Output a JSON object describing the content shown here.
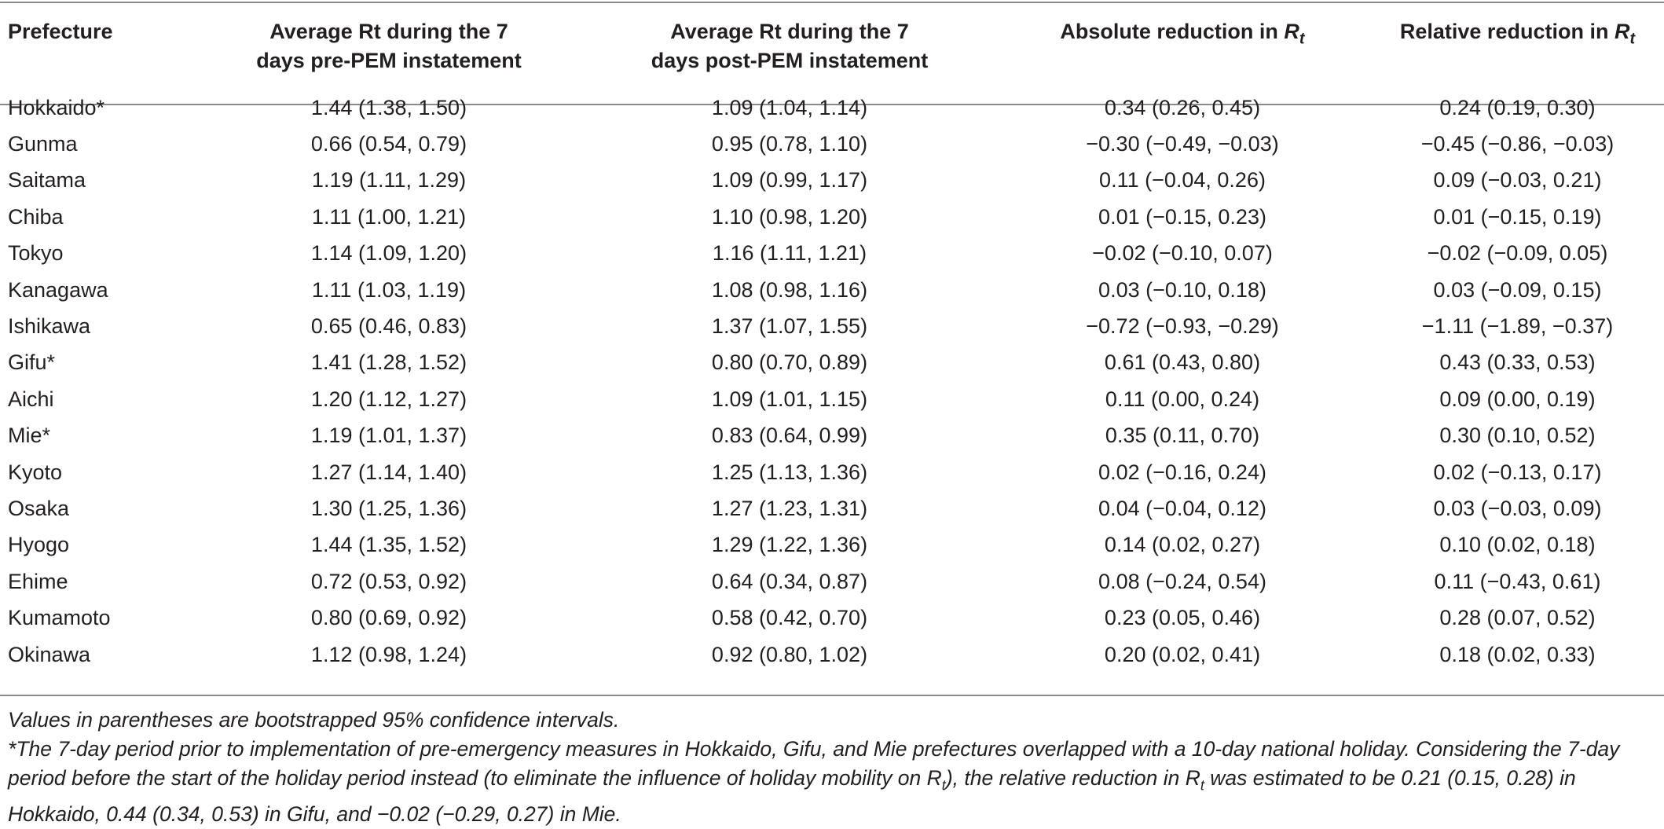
{
  "table": {
    "headers": {
      "prefecture": "Prefecture",
      "pre_line1": "Average Rt during the 7",
      "pre_line2": "days pre-PEM instatement",
      "post_line1": "Average Rt during the 7",
      "post_line2": "days post-PEM instatement",
      "abs_text": "Absolute reduction in ",
      "rel_text": "Relative reduction in ",
      "r_symbol": "R",
      "r_subscript": "t"
    },
    "rows": [
      {
        "prefecture": "Hokkaido*",
        "pre": "1.44 (1.38, 1.50)",
        "post": "1.09 (1.04, 1.14)",
        "abs": "0.34 (0.26, 0.45)",
        "rel": "0.24 (0.19, 0.30)"
      },
      {
        "prefecture": "Gunma",
        "pre": "0.66 (0.54, 0.79)",
        "post": "0.95 (0.78, 1.10)",
        "abs": "−0.30 (−0.49, −0.03)",
        "rel": "−0.45 (−0.86, −0.03)"
      },
      {
        "prefecture": "Saitama",
        "pre": "1.19 (1.11, 1.29)",
        "post": "1.09 (0.99, 1.17)",
        "abs": "0.11 (−0.04, 0.26)",
        "rel": "0.09 (−0.03, 0.21)"
      },
      {
        "prefecture": "Chiba",
        "pre": "1.11 (1.00, 1.21)",
        "post": "1.10 (0.98, 1.20)",
        "abs": "0.01 (−0.15, 0.23)",
        "rel": "0.01 (−0.15, 0.19)"
      },
      {
        "prefecture": "Tokyo",
        "pre": "1.14 (1.09, 1.20)",
        "post": "1.16 (1.11, 1.21)",
        "abs": "−0.02 (−0.10, 0.07)",
        "rel": "−0.02 (−0.09, 0.05)"
      },
      {
        "prefecture": "Kanagawa",
        "pre": "1.11 (1.03, 1.19)",
        "post": "1.08 (0.98, 1.16)",
        "abs": "0.03 (−0.10, 0.18)",
        "rel": "0.03 (−0.09, 0.15)"
      },
      {
        "prefecture": "Ishikawa",
        "pre": "0.65 (0.46, 0.83)",
        "post": "1.37 (1.07, 1.55)",
        "abs": "−0.72 (−0.93, −0.29)",
        "rel": "−1.11 (−1.89, −0.37)"
      },
      {
        "prefecture": "Gifu*",
        "pre": "1.41 (1.28, 1.52)",
        "post": "0.80 (0.70, 0.89)",
        "abs": "0.61 (0.43, 0.80)",
        "rel": "0.43 (0.33, 0.53)"
      },
      {
        "prefecture": "Aichi",
        "pre": "1.20 (1.12, 1.27)",
        "post": "1.09 (1.01, 1.15)",
        "abs": "0.11 (0.00, 0.24)",
        "rel": "0.09 (0.00, 0.19)"
      },
      {
        "prefecture": "Mie*",
        "pre": "1.19 (1.01, 1.37)",
        "post": "0.83 (0.64, 0.99)",
        "abs": "0.35 (0.11, 0.70)",
        "rel": "0.30 (0.10, 0.52)"
      },
      {
        "prefecture": "Kyoto",
        "pre": "1.27 (1.14, 1.40)",
        "post": "1.25 (1.13, 1.36)",
        "abs": "0.02 (−0.16, 0.24)",
        "rel": "0.02 (−0.13, 0.17)"
      },
      {
        "prefecture": "Osaka",
        "pre": "1.30 (1.25, 1.36)",
        "post": "1.27 (1.23, 1.31)",
        "abs": "0.04 (−0.04, 0.12)",
        "rel": "0.03 (−0.03, 0.09)"
      },
      {
        "prefecture": "Hyogo",
        "pre": "1.44 (1.35, 1.52)",
        "post": "1.29 (1.22, 1.36)",
        "abs": "0.14 (0.02, 0.27)",
        "rel": "0.10 (0.02, 0.18)"
      },
      {
        "prefecture": "Ehime",
        "pre": "0.72 (0.53, 0.92)",
        "post": "0.64 (0.34, 0.87)",
        "abs": "0.08 (−0.24, 0.54)",
        "rel": "0.11 (−0.43, 0.61)"
      },
      {
        "prefecture": "Kumamoto",
        "pre": "0.80 (0.69, 0.92)",
        "post": "0.58 (0.42, 0.70)",
        "abs": "0.23 (0.05, 0.46)",
        "rel": "0.28 (0.07, 0.52)"
      },
      {
        "prefecture": "Okinawa",
        "pre": "1.12 (0.98, 1.24)",
        "post": "0.92 (0.80, 1.02)",
        "abs": "0.20 (0.02, 0.41)",
        "rel": "0.18 (0.02, 0.33)"
      }
    ]
  },
  "footnotes": {
    "note1": "Values in parentheses are bootstrapped 95% confidence intervals.",
    "note2_part1": "*The 7-day period prior to implementation of pre-emergency measures in Hokkaido, Gifu, and Mie prefectures overlapped with a 10-day national holiday. Considering the 7-day period before the start of the holiday period instead (to eliminate the influence of holiday mobility on R",
    "note2_sub1": "t",
    "note2_part2": "), the relative reduction in R",
    "note2_sub2": "t",
    "note2_part3": " was estimated to be 0.21 (0.15, 0.28) in Hokkaido, 0.44 (0.34, 0.53) in Gifu, and −0.02 (−0.29, 0.27) in Mie."
  }
}
